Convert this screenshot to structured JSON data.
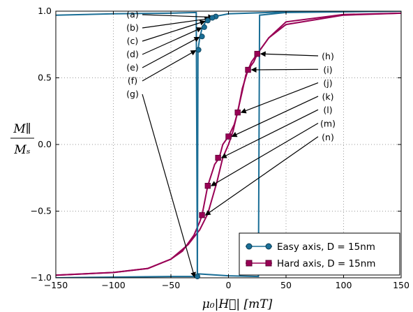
{
  "chart_data": {
    "type": "line",
    "xlabel": "μ₀|H⃗| [mT]",
    "ylabel_num": "M∥",
    "ylabel_den": "Mₛ",
    "xlim": [
      -150,
      150
    ],
    "ylim": [
      -1.0,
      1.0
    ],
    "xticks": [
      -150,
      -100,
      -50,
      0,
      50,
      100,
      150
    ],
    "xtick_labels": [
      "−150",
      "−100",
      "−50",
      "0",
      "50",
      "100",
      "150"
    ],
    "yticks": [
      -1.0,
      -0.5,
      0.0,
      0.5,
      1.0
    ],
    "ytick_labels": [
      "−1.0",
      "−0.5",
      "0.0",
      "0.5",
      "1.0"
    ],
    "grid": true,
    "legend_position": "bottom-right",
    "series": [
      {
        "name": "Easy axis, D = 15nm",
        "color": "#1a6e96",
        "marker": "circle",
        "upper_branch": [
          [
            -150,
            0.97
          ],
          [
            -100,
            0.98
          ],
          [
            -50,
            0.985
          ],
          [
            -28,
            0.99
          ],
          [
            -27,
            -0.97
          ],
          [
            0,
            -0.985
          ],
          [
            26,
            -0.99
          ],
          [
            27,
            0.97
          ],
          [
            50,
            0.99
          ],
          [
            150,
            1.0
          ]
        ],
        "lower_branch": [
          [
            -150,
            -1.0
          ],
          [
            -100,
            -0.995
          ],
          [
            -50,
            -0.99
          ],
          [
            -27,
            -0.99
          ],
          [
            -26.5,
            0.71
          ],
          [
            -25,
            0.8
          ],
          [
            -23,
            0.87
          ],
          [
            -20,
            0.92
          ],
          [
            -17,
            0.95
          ],
          [
            -12,
            0.96
          ],
          [
            0,
            0.98
          ],
          [
            50,
            0.995
          ],
          [
            150,
            1.0
          ]
        ],
        "markers": [
          {
            "label": "(a)",
            "x": -11,
            "y": 0.96
          },
          {
            "label": "(b)",
            "x": -14,
            "y": 0.95
          },
          {
            "label": "(c)",
            "x": -18,
            "y": 0.93
          },
          {
            "label": "(d)",
            "x": -21,
            "y": 0.88
          },
          {
            "label": "(e)",
            "x": -23,
            "y": 0.81
          },
          {
            "label": "(f)",
            "x": -26,
            "y": 0.71
          },
          {
            "label": "(g)",
            "x": -27,
            "y": -0.99
          }
        ]
      },
      {
        "name": "Hard axis, D = 15nm",
        "color": "#990055",
        "marker": "square",
        "forward_branch": [
          [
            -150,
            -0.98
          ],
          [
            -100,
            -0.96
          ],
          [
            -70,
            -0.93
          ],
          [
            -50,
            -0.86
          ],
          [
            -40,
            -0.8
          ],
          [
            -30,
            -0.68
          ],
          [
            -25,
            -0.58
          ],
          [
            -23,
            -0.53
          ],
          [
            -18,
            -0.31
          ],
          [
            -12,
            -0.15
          ],
          [
            -8,
            -0.1
          ],
          [
            -5,
            0.0
          ],
          [
            0,
            0.06
          ],
          [
            5,
            0.15
          ],
          [
            8,
            0.24
          ],
          [
            12,
            0.42
          ],
          [
            17,
            0.56
          ],
          [
            22,
            0.62
          ],
          [
            25,
            0.68
          ],
          [
            35,
            0.8
          ],
          [
            50,
            0.9
          ],
          [
            100,
            0.97
          ],
          [
            150,
            0.985
          ]
        ],
        "reverse_branch": [
          [
            150,
            0.985
          ],
          [
            100,
            0.975
          ],
          [
            50,
            0.92
          ],
          [
            35,
            0.8
          ],
          [
            20,
            0.62
          ],
          [
            15,
            0.52
          ],
          [
            12,
            0.4
          ],
          [
            8,
            0.25
          ],
          [
            4,
            0.1
          ],
          [
            0,
            0.0
          ],
          [
            -5,
            -0.1
          ],
          [
            -10,
            -0.28
          ],
          [
            -14,
            -0.4
          ],
          [
            -18,
            -0.52
          ],
          [
            -25,
            -0.64
          ],
          [
            -35,
            -0.75
          ],
          [
            -50,
            -0.86
          ],
          [
            -70,
            -0.93
          ],
          [
            -100,
            -0.96
          ],
          [
            -150,
            -0.98
          ]
        ],
        "markers": [
          {
            "label": "(h)",
            "x": 25,
            "y": 0.68
          },
          {
            "label": "(i)",
            "x": 17,
            "y": 0.56
          },
          {
            "label": "(j)",
            "x": 8,
            "y": 0.24
          },
          {
            "label": "(k)",
            "x": 0,
            "y": 0.06
          },
          {
            "label": "(l)",
            "x": -9,
            "y": -0.1
          },
          {
            "label": "(m)",
            "x": -18,
            "y": -0.31
          },
          {
            "label": "(n)",
            "x": -23,
            "y": -0.53
          }
        ]
      }
    ]
  }
}
